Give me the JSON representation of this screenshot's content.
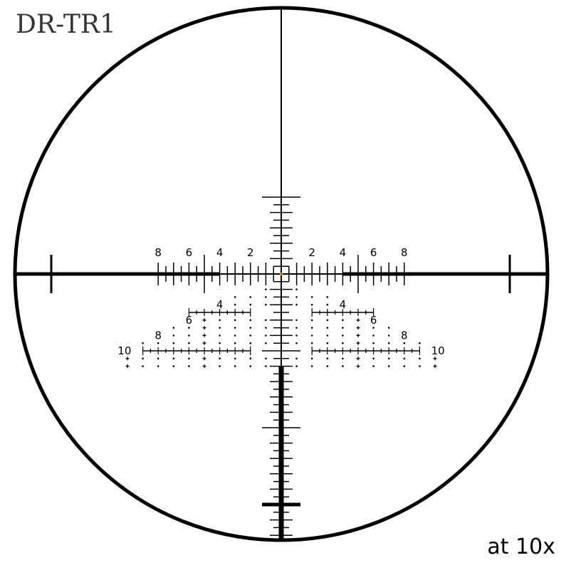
{
  "title": "DR-TR1",
  "magnification_note": "at 10x",
  "colors": {
    "reticle": "#000000",
    "center_dot": "#e8731a"
  },
  "windage_labels_left": [
    "2",
    "4",
    "6",
    "8"
  ],
  "windage_labels_right": [
    "2",
    "4",
    "6",
    "8"
  ],
  "holdover_labels": {
    "row_4": "4",
    "row_6": "6",
    "row_8": "8",
    "row_10": "10"
  }
}
